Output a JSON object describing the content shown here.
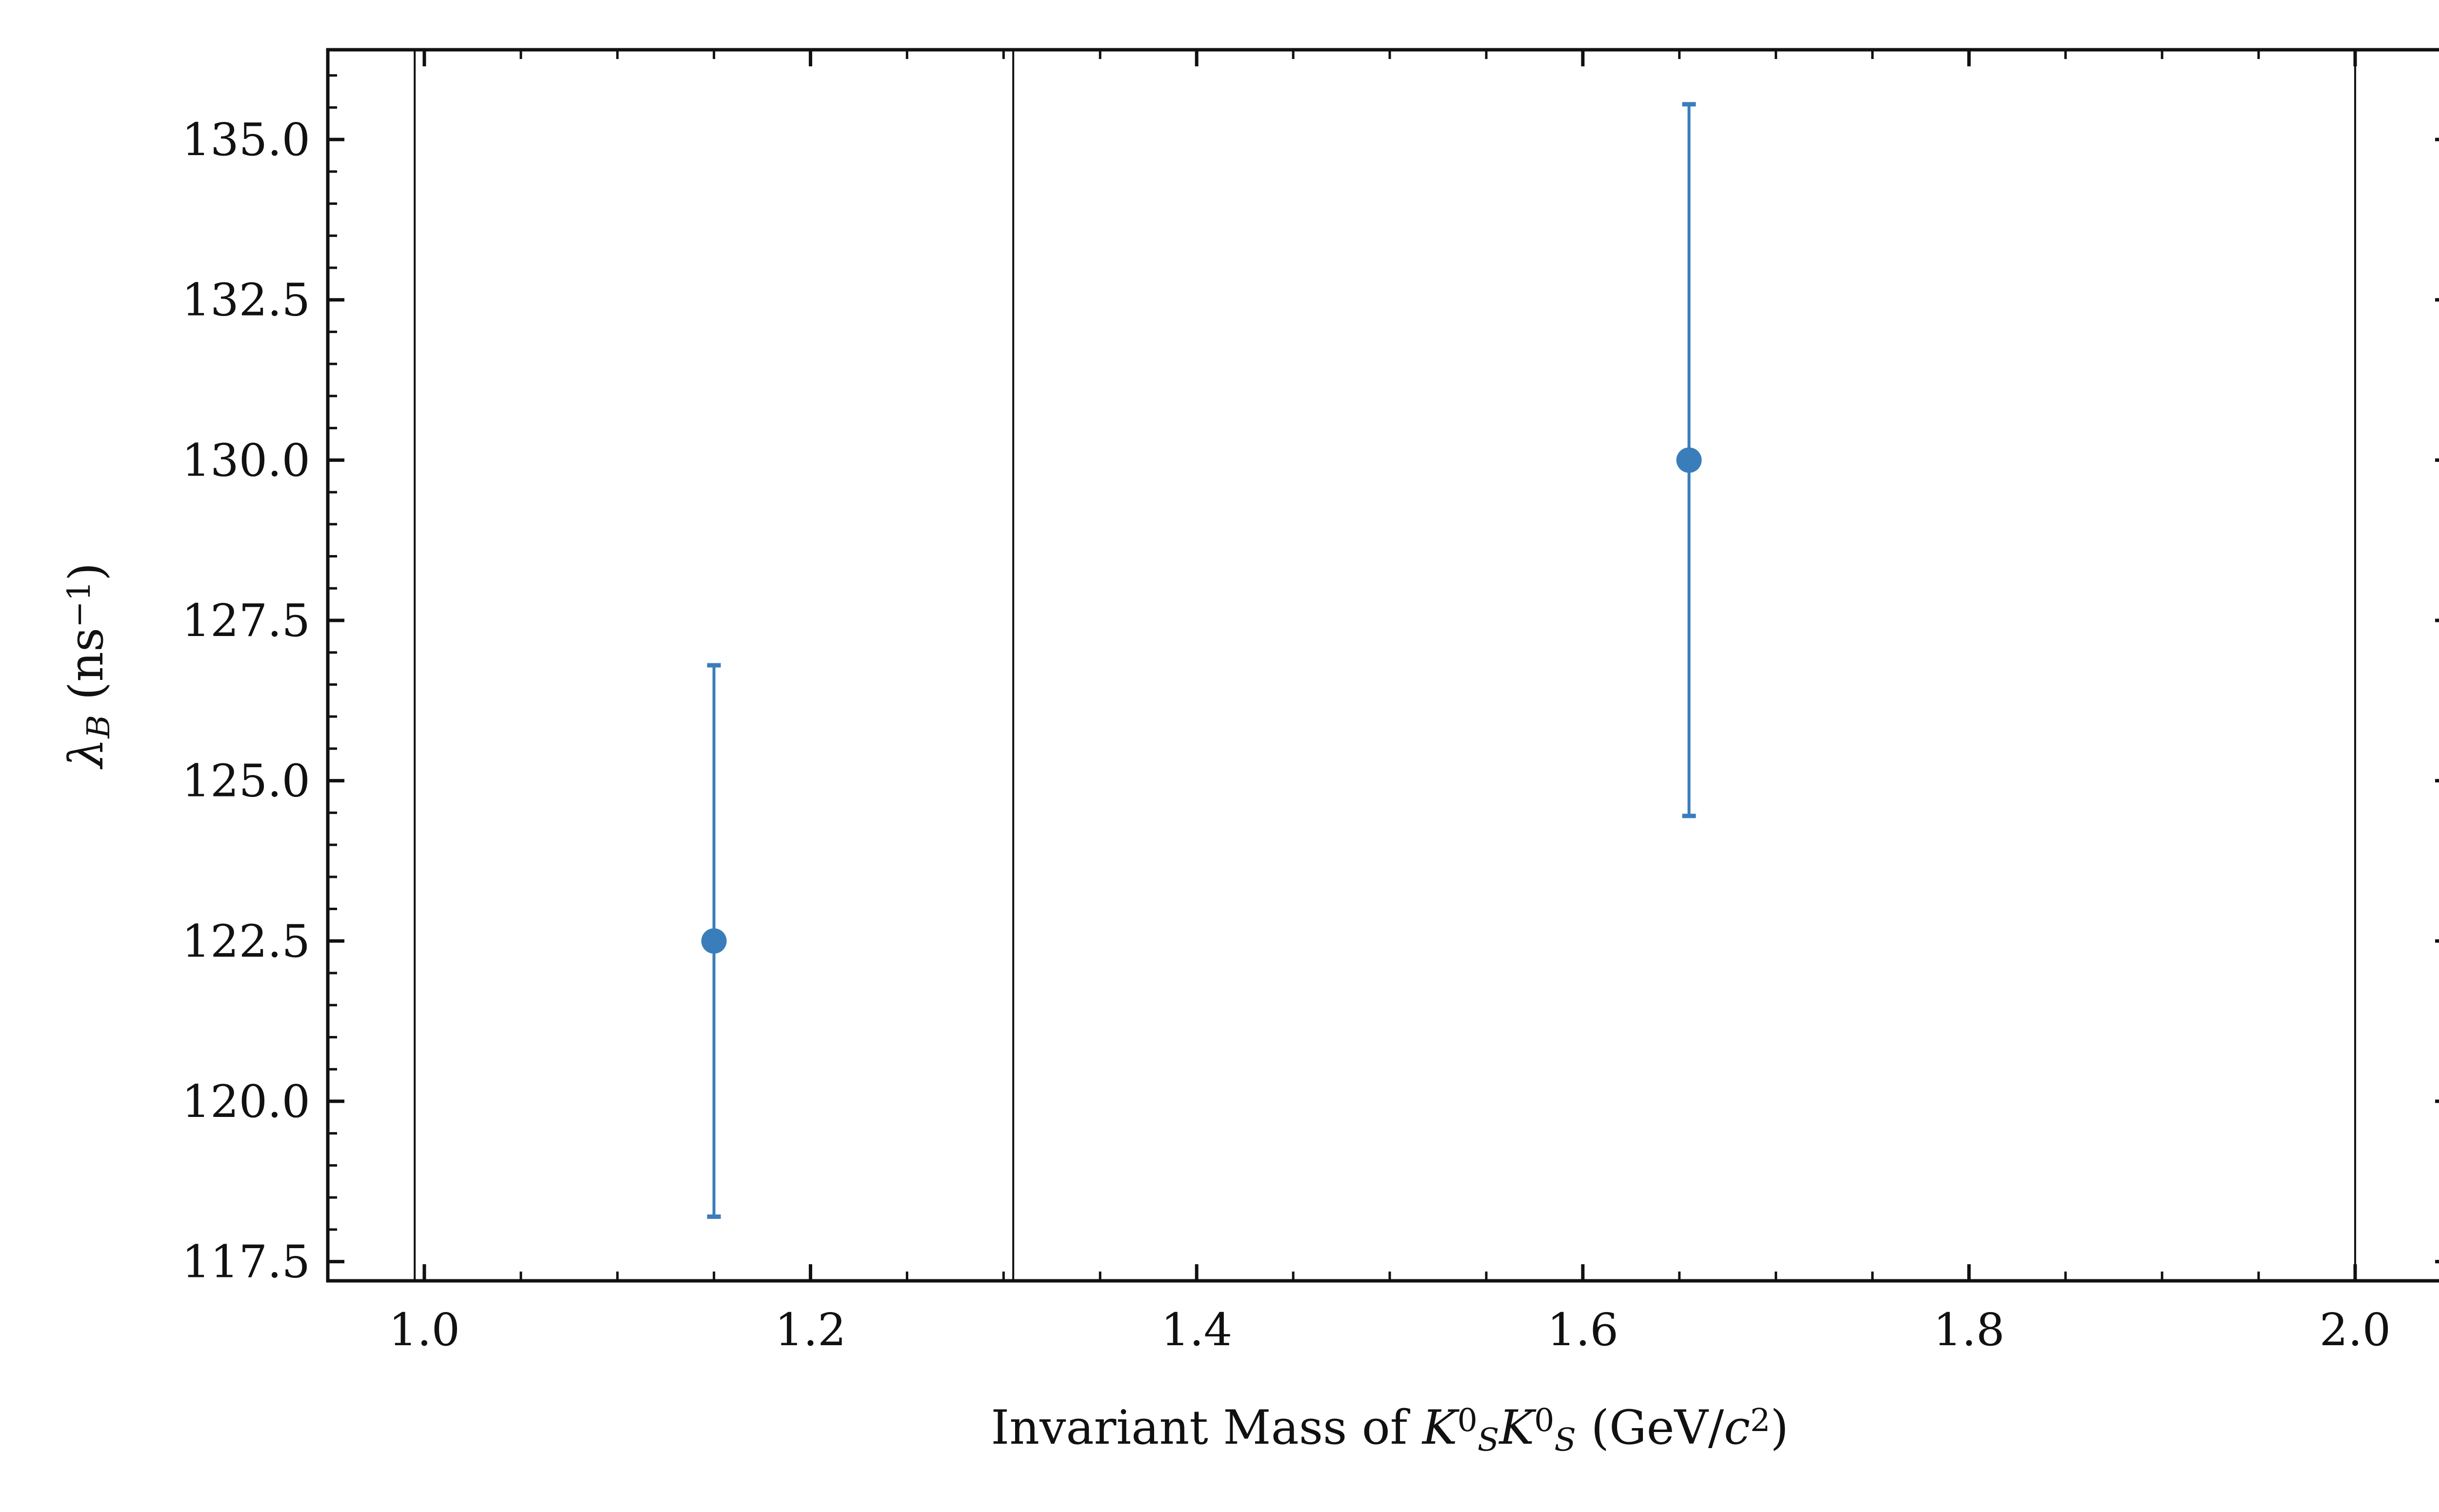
{
  "chart_data": {
    "type": "scatter",
    "xlabel": {
      "parts": [
        {
          "text": "Invariant Mass of ",
          "style": "roman"
        },
        {
          "text": "K",
          "style": "italic"
        },
        {
          "text": "0",
          "style": "sup"
        },
        {
          "text": "S",
          "style": "sub-italic"
        },
        {
          "text": "K",
          "style": "italic"
        },
        {
          "text": "0",
          "style": "sup"
        },
        {
          "text": "S",
          "style": "sub-italic"
        },
        {
          "text": " (GeV/",
          "style": "roman"
        },
        {
          "text": "c",
          "style": "italic"
        },
        {
          "text": "2",
          "style": "sup"
        },
        {
          "text": ")",
          "style": "roman"
        }
      ]
    },
    "ylabel": {
      "parts": [
        {
          "text": "λ",
          "style": "italic"
        },
        {
          "text": "B",
          "style": "sub-italic"
        },
        {
          "text": " (ns",
          "style": "roman"
        },
        {
          "text": "−1",
          "style": "sup"
        },
        {
          "text": ")",
          "style": "roman"
        }
      ]
    },
    "xlim": [
      0.95,
      2.05
    ],
    "ylim": [
      117.2,
      136.4
    ],
    "x_ticks": [
      1.0,
      1.2,
      1.4,
      1.6,
      1.8,
      2.0
    ],
    "x_tick_labels": [
      "1.0",
      "1.2",
      "1.4",
      "1.6",
      "1.8",
      "2.0"
    ],
    "y_ticks": [
      117.5,
      120.0,
      122.5,
      125.0,
      127.5,
      130.0,
      132.5,
      135.0
    ],
    "y_tick_labels": [
      "117.5",
      "120.0",
      "122.5",
      "125.0",
      "127.5",
      "130.0",
      "132.5",
      "135.0"
    ],
    "vertical_lines": [
      0.995,
      1.305,
      2.0
    ],
    "grid": false,
    "series": [
      {
        "color": "#3a7dbb",
        "points": [
          {
            "x": 1.15,
            "y": 122.5,
            "err_low": 4.3,
            "err_high": 4.3
          },
          {
            "x": 1.655,
            "y": 130.0,
            "err_low": 5.55,
            "err_high": 5.55
          }
        ]
      }
    ]
  }
}
